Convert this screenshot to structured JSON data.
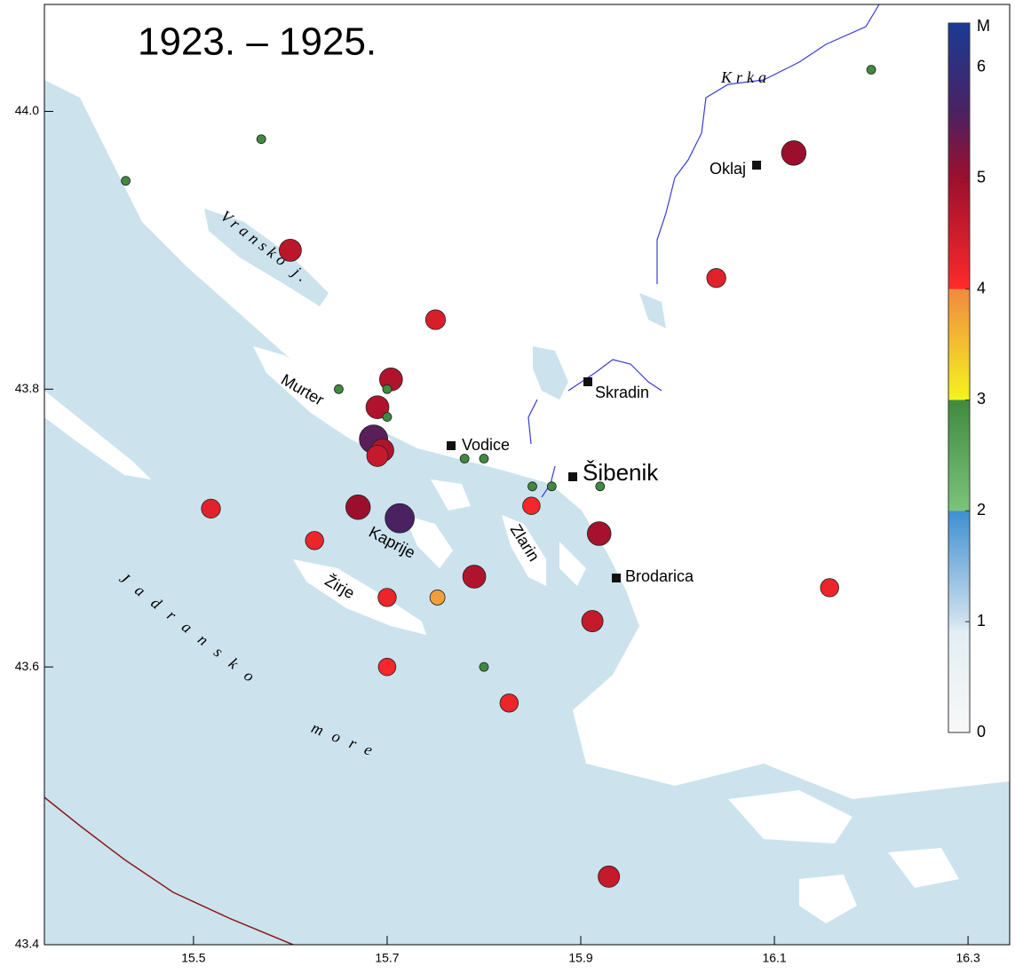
{
  "chart_data": {
    "type": "scatter",
    "title": "1923. – 1925.",
    "xlim": [
      15.346,
      16.343
    ],
    "ylim": [
      43.4,
      44.077
    ],
    "xticks": [
      15.5,
      15.7,
      15.9,
      16.1,
      16.3
    ],
    "yticks": [
      43.4,
      43.6,
      43.8,
      {
        "value": 44,
        "label": "44.0"
      }
    ],
    "x": [
      16.2,
      15.57,
      15.43,
      16.12,
      15.6,
      16.04,
      15.75,
      15.704,
      15.7,
      15.65,
      15.69,
      15.7,
      15.686,
      15.695,
      15.69,
      15.78,
      15.8,
      15.85,
      15.87,
      15.92,
      15.849,
      15.518,
      15.67,
      15.713,
      15.919,
      15.625,
      15.79,
      15.7,
      15.752,
      16.157,
      15.912,
      15.7,
      15.8,
      15.826,
      15.929
    ],
    "y": [
      44.03,
      43.98,
      43.95,
      43.97,
      43.9,
      43.88,
      43.85,
      43.807,
      43.8,
      43.8,
      43.787,
      43.78,
      43.764,
      43.756,
      43.752,
      43.75,
      43.75,
      43.73,
      43.73,
      43.73,
      43.716,
      43.714,
      43.715,
      43.707,
      43.696,
      43.691,
      43.665,
      43.65,
      43.65,
      43.657,
      43.633,
      43.6,
      43.6,
      43.574,
      43.449
    ],
    "magnitude": [
      3.0,
      3.0,
      3.0,
      5.0,
      4.7,
      4.3,
      4.4,
      4.8,
      3.0,
      3.0,
      4.8,
      3.0,
      5.5,
      4.8,
      4.6,
      3.0,
      3.0,
      3.0,
      3.0,
      3.0,
      4.1,
      4.3,
      5.0,
      5.6,
      4.9,
      4.2,
      4.8,
      4.2,
      3.8,
      4.2,
      4.6,
      4.1,
      3.0,
      4.2,
      4.6
    ],
    "colorbar": {
      "label": "M",
      "lim": [
        0,
        6.4
      ],
      "ticks": [
        0,
        1,
        2,
        3,
        4,
        5,
        6
      ],
      "stops": [
        [
          0,
          "#f8f8f8"
        ],
        [
          0.9,
          "#e4eef4"
        ],
        [
          1,
          "#cfe1ee"
        ],
        [
          2,
          "#3f8fd0"
        ],
        [
          2,
          "#7cc47c"
        ],
        [
          3,
          "#3f8a3f"
        ],
        [
          3,
          "#f4f41e"
        ],
        [
          4,
          "#f08a40"
        ],
        [
          4,
          "#ff2a2a"
        ],
        [
          5,
          "#9c0f2c"
        ],
        [
          5.6,
          "#4a2262"
        ],
        [
          6.4,
          "#1b3a94"
        ]
      ]
    },
    "places": [
      "Oklaj",
      "Skradin",
      "Vodice",
      "Šibenik",
      "Brodarica"
    ],
    "labels": [
      "Krka",
      "Vransko j.",
      "Murter",
      "Kaprije",
      "Zlarin",
      "Žirje",
      "Jadransko",
      "more"
    ]
  }
}
